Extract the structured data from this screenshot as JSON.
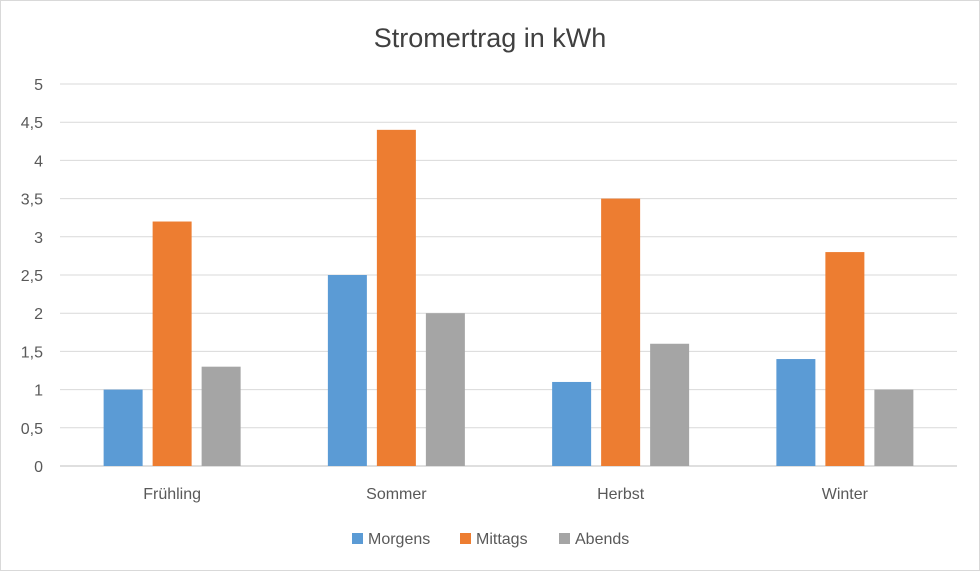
{
  "chart_data": {
    "type": "bar",
    "title": "Stromertrag in kWh",
    "categories": [
      "Frühling",
      "Sommer",
      "Herbst",
      "Winter"
    ],
    "series": [
      {
        "name": "Morgens",
        "values": [
          1.0,
          2.5,
          1.1,
          1.4
        ],
        "color": "#5b9bd5"
      },
      {
        "name": "Mittags",
        "values": [
          3.2,
          4.4,
          3.5,
          2.8
        ],
        "color": "#ed7d31"
      },
      {
        "name": "Abends",
        "values": [
          1.3,
          2.0,
          1.6,
          1.0
        ],
        "color": "#a5a5a5"
      }
    ],
    "ylim": [
      0,
      5
    ],
    "yticks": [
      "0",
      "0,5",
      "1",
      "1,5",
      "2",
      "2,5",
      "3",
      "3,5",
      "4",
      "4,5",
      "5"
    ],
    "grid": true,
    "legend_position": "bottom"
  }
}
